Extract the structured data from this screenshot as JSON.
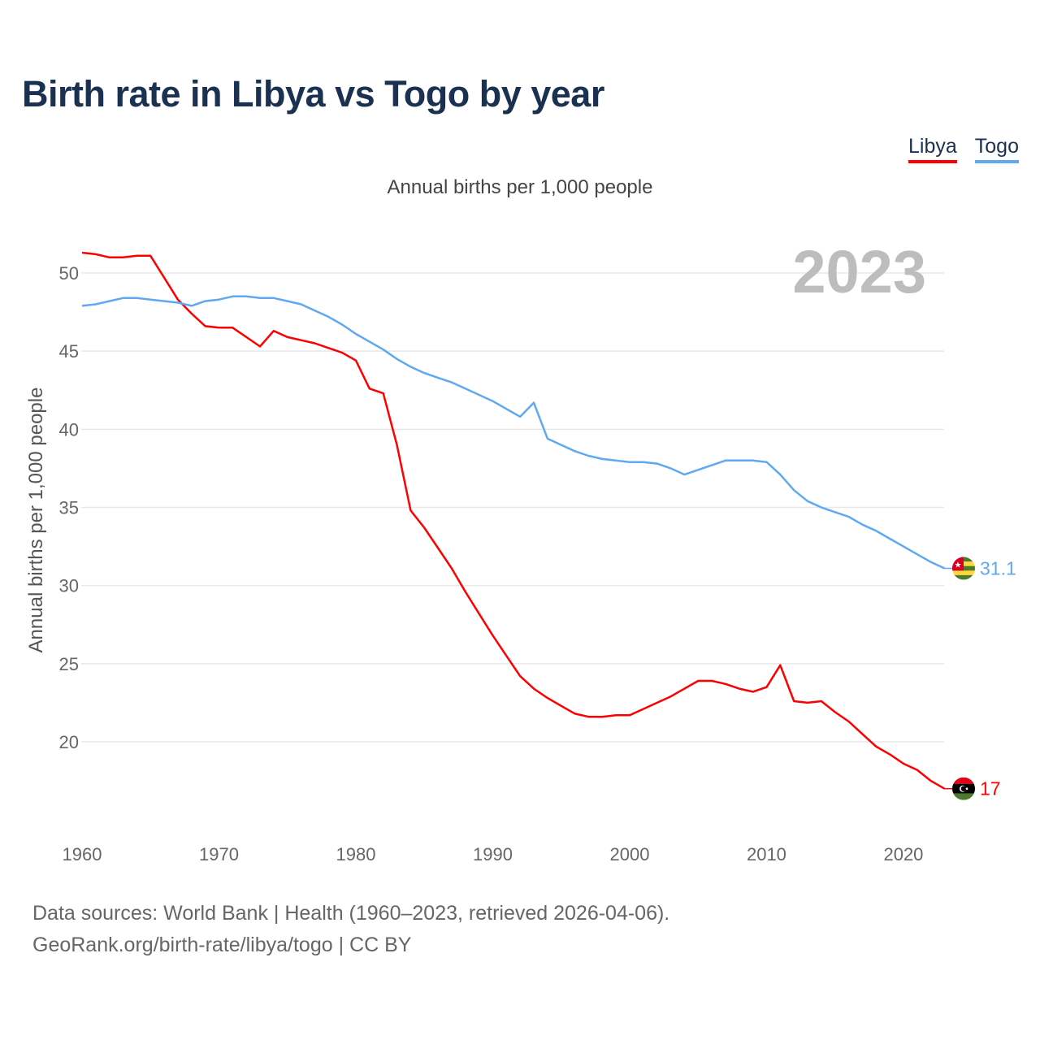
{
  "title": "Birth rate in Libya vs Togo by year",
  "footer": {
    "line1": "Data sources: World Bank | Health (1960–2023, retrieved 2026-04-06).",
    "line2": "GeoRank.org/birth-rate/libya/togo | CC BY"
  },
  "chart_data": {
    "type": "line",
    "title": "Birth rate in Libya vs Togo by year",
    "subtitle": "Annual births per 1,000 people",
    "xlabel": "",
    "ylabel": "Annual births per 1,000 people",
    "year_label": "2023",
    "xlim": [
      1960,
      2023
    ],
    "ylim": [
      15,
      52
    ],
    "x_ticks": [
      1960,
      1970,
      1980,
      1990,
      2000,
      2010,
      2020
    ],
    "y_ticks": [
      20,
      25,
      30,
      35,
      40,
      45,
      50
    ],
    "grid": true,
    "legend_position": "top-right",
    "x": [
      1960,
      1961,
      1962,
      1963,
      1964,
      1965,
      1966,
      1967,
      1968,
      1969,
      1970,
      1971,
      1972,
      1973,
      1974,
      1975,
      1976,
      1977,
      1978,
      1979,
      1980,
      1981,
      1982,
      1983,
      1984,
      1985,
      1986,
      1987,
      1988,
      1989,
      1990,
      1991,
      1992,
      1993,
      1994,
      1995,
      1996,
      1997,
      1998,
      1999,
      2000,
      2001,
      2002,
      2003,
      2004,
      2005,
      2006,
      2007,
      2008,
      2009,
      2010,
      2011,
      2012,
      2013,
      2014,
      2015,
      2016,
      2017,
      2018,
      2019,
      2020,
      2021,
      2022,
      2023
    ],
    "series": [
      {
        "name": "Libya",
        "color": "#ff0000",
        "end_label": "17",
        "values": [
          51.3,
          51.2,
          51.0,
          51.0,
          51.1,
          51.1,
          49.7,
          48.3,
          47.4,
          46.6,
          46.5,
          46.5,
          45.9,
          45.3,
          46.3,
          45.9,
          45.7,
          45.5,
          45.2,
          44.9,
          44.4,
          42.6,
          42.3,
          39.0,
          34.8,
          33.7,
          32.4,
          31.1,
          29.6,
          28.2,
          26.8,
          25.5,
          24.2,
          23.4,
          22.8,
          22.3,
          21.8,
          21.6,
          21.6,
          21.7,
          21.7,
          22.1,
          22.5,
          22.9,
          23.4,
          23.9,
          23.9,
          23.7,
          23.4,
          23.2,
          23.5,
          24.9,
          22.6,
          22.5,
          22.6,
          21.9,
          21.3,
          20.5,
          19.7,
          19.2,
          18.6,
          18.2,
          17.5,
          17.0
        ]
      },
      {
        "name": "Togo",
        "color": "#5ea9ef",
        "end_label": "31.1",
        "values": [
          47.9,
          48.0,
          48.2,
          48.4,
          48.4,
          48.3,
          48.2,
          48.1,
          47.9,
          48.2,
          48.3,
          48.5,
          48.5,
          48.4,
          48.4,
          48.2,
          48.0,
          47.6,
          47.2,
          46.7,
          46.1,
          45.6,
          45.1,
          44.5,
          44.0,
          43.6,
          43.3,
          43.0,
          42.6,
          42.2,
          41.8,
          41.3,
          40.8,
          41.7,
          39.4,
          39.0,
          38.6,
          38.3,
          38.1,
          38.0,
          37.9,
          37.9,
          37.8,
          37.5,
          37.1,
          37.4,
          37.7,
          38.0,
          38.0,
          38.0,
          37.9,
          37.1,
          36.1,
          35.4,
          35.0,
          34.7,
          34.4,
          33.9,
          33.5,
          33.0,
          32.5,
          32.0,
          31.5,
          31.1
        ]
      }
    ]
  }
}
